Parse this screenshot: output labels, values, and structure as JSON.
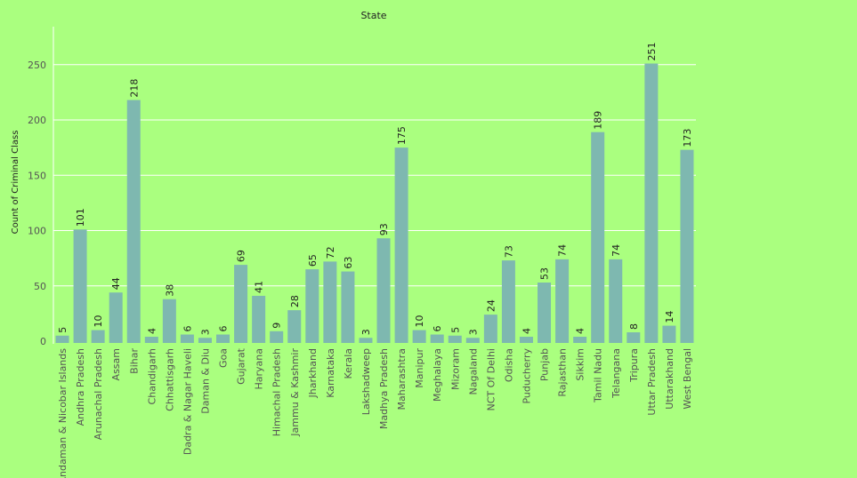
{
  "chart_data": {
    "type": "bar",
    "title": "State",
    "xlabel": "",
    "ylabel": "Count of Criminal Class",
    "ylim": [
      0,
      285
    ],
    "yticks": [
      0,
      50,
      100,
      150,
      200,
      250
    ],
    "grid": true,
    "data_labels": true,
    "bar_color": "#7eb8b0",
    "background": "#aaff7f",
    "categories": [
      "Andaman & Nicobar Islands",
      "Andhra Pradesh",
      "Arunachal Pradesh",
      "Assam",
      "Bihar",
      "Chandigarh",
      "Chhattisgarh",
      "Dadra & Nagar Haveli",
      "Daman & Diu",
      "Goa",
      "Gujarat",
      "Haryana",
      "Himachal Pradesh",
      "Jammu & Kashmir",
      "Jharkhand",
      "Karnataka",
      "Kerala",
      "Lakshadweep",
      "Madhya Pradesh",
      "Maharashtra",
      "Manipur",
      "Meghalaya",
      "Mizoram",
      "Nagaland",
      "NCT Of Delhi",
      "Odisha",
      "Puducherry",
      "Punjab",
      "Rajasthan",
      "Sikkim",
      "Tamil Nadu",
      "Telangana",
      "Tripura",
      "Uttar Pradesh",
      "Uttarakhand",
      "West Bengal"
    ],
    "values": [
      5,
      101,
      10,
      44,
      218,
      4,
      38,
      6,
      3,
      6,
      69,
      41,
      9,
      28,
      65,
      72,
      63,
      3,
      93,
      175,
      10,
      6,
      5,
      3,
      24,
      73,
      4,
      53,
      74,
      4,
      189,
      74,
      8,
      251,
      14,
      173
    ]
  }
}
